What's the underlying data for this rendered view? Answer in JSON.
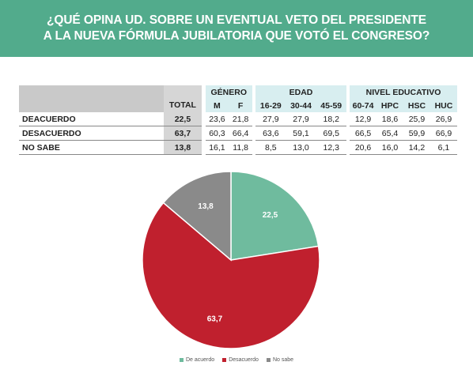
{
  "title": {
    "line1": "¿QUÉ OPINA UD. SOBRE UN EVENTUAL VETO DEL PRESIDENTE",
    "line2": "A LA NUEVA FÓRMULA JUBILATORIA QUE VOTÓ EL CONGRESO?"
  },
  "table": {
    "total_label": "TOTAL",
    "groups": {
      "genero": "GÉNERO",
      "edad": "EDAD",
      "nivel": "NIVEL EDUCATIVO"
    },
    "columns": [
      "M",
      "F",
      "16-29",
      "30-44",
      "45-59",
      "60-74",
      "HPC",
      "HSC",
      "HUC"
    ],
    "rows": [
      {
        "label": "DEACUERDO",
        "total": "22,5",
        "values": [
          "23,6",
          "21,8",
          "27,9",
          "27,9",
          "18,2",
          "12,9",
          "18,6",
          "25,9",
          "26,9"
        ]
      },
      {
        "label": "DESACUERDO",
        "total": "63,7",
        "values": [
          "60,3",
          "66,4",
          "63,6",
          "59,1",
          "69,5",
          "66,5",
          "65,4",
          "59,9",
          "66,9"
        ]
      },
      {
        "label": "NO SABE",
        "total": "13,8",
        "values": [
          "16,1",
          "11,8",
          "8,5",
          "13,0",
          "12,3",
          "20,6",
          "16,0",
          "14,2",
          "6,1"
        ]
      }
    ]
  },
  "chart_data": {
    "type": "pie",
    "categories": [
      "De acuerdo",
      "Desacuerdo",
      "No sabe"
    ],
    "values": [
      22.5,
      63.7,
      13.8
    ],
    "value_labels": [
      "22,5",
      "63,7",
      "13,8"
    ],
    "colors": [
      "#6fbb9e",
      "#c0202e",
      "#8a8a8a"
    ],
    "legend_placement": "bottom"
  }
}
